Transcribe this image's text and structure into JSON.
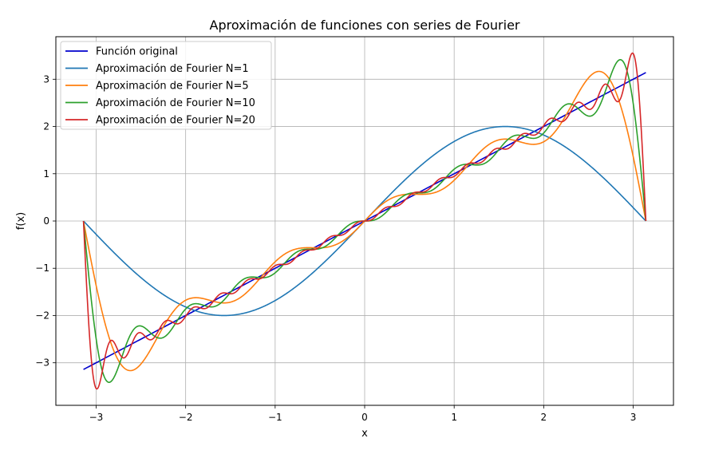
{
  "chart_data": {
    "type": "line",
    "title": "Aproximación de funciones con series de Fourier",
    "xlabel": "x",
    "ylabel": "f(x)",
    "xlim": [
      -3.45,
      3.45
    ],
    "ylim": [
      -3.9,
      3.9
    ],
    "xticks": [
      -3,
      -2,
      -1,
      0,
      1,
      2,
      3
    ],
    "yticks": [
      -3,
      -2,
      -1,
      0,
      1,
      2,
      3
    ],
    "xtick_labels": [
      "−3",
      "−2",
      "−1",
      "0",
      "1",
      "2",
      "3"
    ],
    "ytick_labels": [
      "−3",
      "−2",
      "−1",
      "0",
      "1",
      "2",
      "3"
    ],
    "grid": true,
    "legend_position": "top-left",
    "x_domain": [
      -3.14159,
      3.14159
    ],
    "series": [
      {
        "name": "Función original",
        "color": "#0000cd",
        "function": "x"
      },
      {
        "name": "Aproximación de Fourier N=1",
        "color": "#1f77b4",
        "fourier_terms": 1
      },
      {
        "name": "Aproximación de Fourier N=5",
        "color": "#ff7f0e",
        "fourier_terms": 5
      },
      {
        "name": "Aproximación de Fourier N=10",
        "color": "#2ca02c",
        "fourier_terms": 10
      },
      {
        "name": "Aproximación de Fourier N=20",
        "color": "#d62728",
        "fourier_terms": 20
      }
    ]
  }
}
